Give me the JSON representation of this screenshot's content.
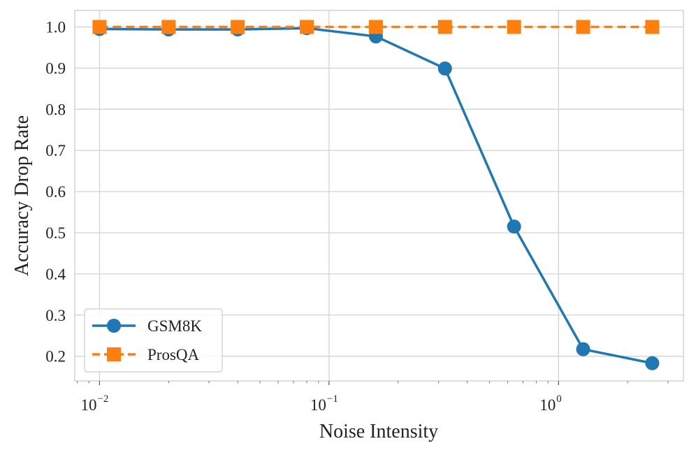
{
  "chart_data": {
    "type": "line",
    "title": "",
    "xlabel": "Noise Intensity",
    "ylabel": "Accuracy Drop Rate",
    "xscale": "log",
    "xlim": [
      0.0078,
      3.5
    ],
    "ylim": [
      0.14,
      1.04
    ],
    "grid": true,
    "legend_position": "lower-left",
    "x": [
      0.01,
      0.02,
      0.04,
      0.08,
      0.16,
      0.32,
      0.64,
      1.28,
      2.56
    ],
    "x_ticks": [
      {
        "value": 0.01,
        "base": "10",
        "exp": "−2"
      },
      {
        "value": 0.1,
        "base": "10",
        "exp": "−1"
      },
      {
        "value": 1,
        "base": "10",
        "exp": "0"
      }
    ],
    "y_ticks": [
      "0.2",
      "0.3",
      "0.4",
      "0.5",
      "0.6",
      "0.7",
      "0.8",
      "0.9",
      "1.0"
    ],
    "series": [
      {
        "name": "GSM8K",
        "color": "#1f77b4",
        "marker": "circle",
        "linestyle": "solid",
        "values": [
          0.995,
          0.994,
          0.994,
          0.997,
          0.977,
          0.899,
          0.515,
          0.217,
          0.183
        ]
      },
      {
        "name": "ProsQA",
        "color": "#ff7f0e",
        "marker": "square",
        "linestyle": "dashed",
        "values": [
          1.0,
          1.0,
          1.0,
          1.0,
          1.0,
          1.0,
          1.0,
          1.0,
          1.0
        ]
      }
    ]
  }
}
